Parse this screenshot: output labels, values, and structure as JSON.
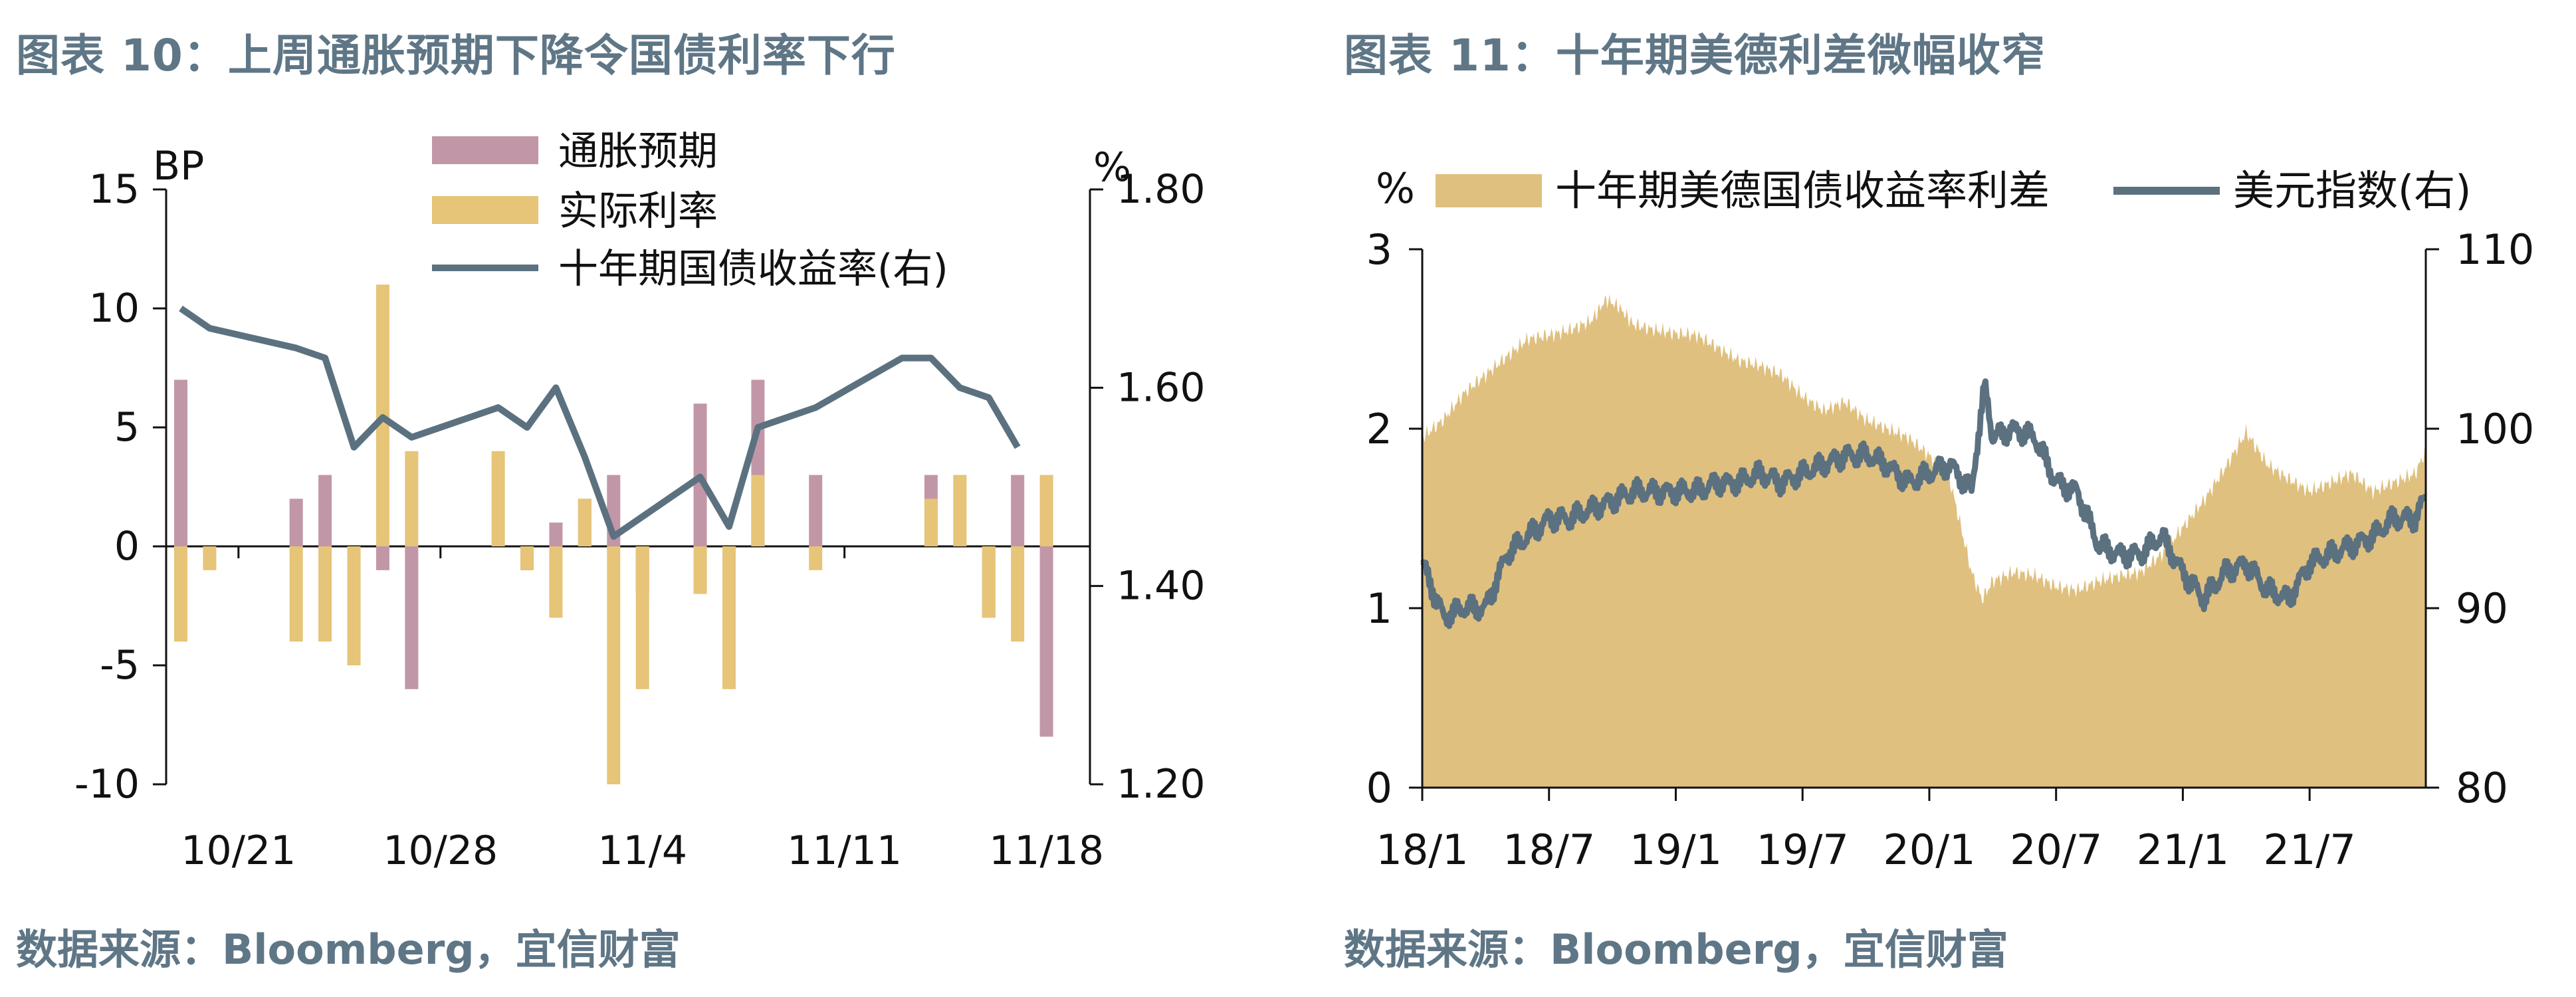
{
  "chart_data": [
    {
      "type": "bar+line",
      "title": "图表 10：上周通胀预期下降令国债利率下行",
      "source": "数据来源：Bloomberg，宜信财富",
      "y_left_unit": "BP",
      "y_right_unit": "%",
      "y_left_lim": [
        -10,
        15
      ],
      "y_left_ticks": [
        "15",
        "10",
        "5",
        "0",
        "-5",
        "-10"
      ],
      "y_right_lim": [
        1.2,
        1.8
      ],
      "y_right_ticks": [
        "1.80",
        "1.60",
        "1.40",
        "1.20"
      ],
      "x_ticks": [
        {
          "label": "10/21",
          "day": 2
        },
        {
          "label": "10/28",
          "day": 9
        },
        {
          "label": "11/4",
          "day": 16
        },
        {
          "label": "11/11",
          "day": 23
        },
        {
          "label": "11/18",
          "day": 30
        }
      ],
      "x_range_days": [
        0,
        31
      ],
      "legend_position": "top-center",
      "grid": false,
      "colors": {
        "inflation": "#c197a8",
        "real": "#e6c478",
        "yield": "#5c7180"
      },
      "series": [
        {
          "name": "通胀预期",
          "kind": "bar",
          "points": [
            {
              "day": 0,
              "value": 7
            },
            {
              "day": 4,
              "value": 2
            },
            {
              "day": 5,
              "value": 3
            },
            {
              "day": 6,
              "value": -4
            },
            {
              "day": 7,
              "value": -1
            },
            {
              "day": 8,
              "value": -6
            },
            {
              "day": 12,
              "value": -1
            },
            {
              "day": 13,
              "value": 1
            },
            {
              "day": 14,
              "value": 2
            },
            {
              "day": 15,
              "value": 3
            },
            {
              "day": 16,
              "value": -2
            },
            {
              "day": 18,
              "value": 6
            },
            {
              "day": 20,
              "value": 7
            },
            {
              "day": 22,
              "value": 3
            },
            {
              "day": 26,
              "value": 3
            },
            {
              "day": 28,
              "value": -3
            },
            {
              "day": 29,
              "value": 3
            },
            {
              "day": 30,
              "value": -8
            }
          ]
        },
        {
          "name": "实际利率",
          "kind": "bar",
          "points": [
            {
              "day": 0,
              "value": -4
            },
            {
              "day": 1,
              "value": -1
            },
            {
              "day": 4,
              "value": -4
            },
            {
              "day": 5,
              "value": -4
            },
            {
              "day": 6,
              "value": -5
            },
            {
              "day": 7,
              "value": 11
            },
            {
              "day": 8,
              "value": 4
            },
            {
              "day": 11,
              "value": 4
            },
            {
              "day": 12,
              "value": -1
            },
            {
              "day": 13,
              "value": -3
            },
            {
              "day": 14,
              "value": 2
            },
            {
              "day": 15,
              "value": -10
            },
            {
              "day": 16,
              "value": -6
            },
            {
              "day": 18,
              "value": -2
            },
            {
              "day": 19,
              "value": -6
            },
            {
              "day": 20,
              "value": 3
            },
            {
              "day": 22,
              "value": -1
            },
            {
              "day": 26,
              "value": 2
            },
            {
              "day": 27,
              "value": 3
            },
            {
              "day": 28,
              "value": -3
            },
            {
              "day": 29,
              "value": -4
            },
            {
              "day": 30,
              "value": 3
            }
          ]
        },
        {
          "name": "十年期国债收益率(右)",
          "kind": "line",
          "points": [
            {
              "day": 0,
              "value": 1.68
            },
            {
              "day": 1,
              "value": 1.66
            },
            {
              "day": 4,
              "value": 1.64
            },
            {
              "day": 5,
              "value": 1.63
            },
            {
              "day": 6,
              "value": 1.54
            },
            {
              "day": 7,
              "value": 1.57
            },
            {
              "day": 8,
              "value": 1.55
            },
            {
              "day": 11,
              "value": 1.58
            },
            {
              "day": 12,
              "value": 1.56
            },
            {
              "day": 13,
              "value": 1.6
            },
            {
              "day": 14,
              "value": 1.53
            },
            {
              "day": 15,
              "value": 1.45
            },
            {
              "day": 18,
              "value": 1.51
            },
            {
              "day": 19,
              "value": 1.46
            },
            {
              "day": 20,
              "value": 1.56
            },
            {
              "day": 22,
              "value": 1.58
            },
            {
              "day": 25,
              "value": 1.63
            },
            {
              "day": 26,
              "value": 1.63
            },
            {
              "day": 27,
              "value": 1.6
            },
            {
              "day": 28,
              "value": 1.59
            },
            {
              "day": 29,
              "value": 1.54
            }
          ]
        }
      ]
    },
    {
      "type": "area+line",
      "title": "图表 11：十年期美德利差微幅收窄",
      "source": "数据来源：Bloomberg，宜信财富",
      "y_left_unit": "%",
      "y_left_lim": [
        0,
        3
      ],
      "y_left_ticks": [
        "3",
        "2",
        "1",
        "0"
      ],
      "y_right_lim": [
        80,
        110
      ],
      "y_right_ticks": [
        "110",
        "100",
        "90",
        "80"
      ],
      "x_range": [
        "2018-01",
        "2021-12"
      ],
      "x_ticks": [
        {
          "label": "18/1",
          "t": 0
        },
        {
          "label": "18/7",
          "t": 6
        },
        {
          "label": "19/1",
          "t": 12
        },
        {
          "label": "19/7",
          "t": 18
        },
        {
          "label": "20/1",
          "t": 24
        },
        {
          "label": "20/7",
          "t": 30
        },
        {
          "label": "21/1",
          "t": 36
        },
        {
          "label": "21/7",
          "t": 42
        }
      ],
      "x_range_months": [
        0,
        47.5
      ],
      "legend_position": "top",
      "grid": false,
      "colors": {
        "spread": "#dfc07f",
        "dxy": "#5c7180"
      },
      "series": [
        {
          "name": "十年期美德国债收益率利差",
          "kind": "area",
          "points": [
            [
              0,
              1.95
            ],
            [
              1,
              2.05
            ],
            [
              2,
              2.2
            ],
            [
              3,
              2.3
            ],
            [
              4,
              2.4
            ],
            [
              5,
              2.5
            ],
            [
              6,
              2.52
            ],
            [
              7,
              2.55
            ],
            [
              8,
              2.6
            ],
            [
              8.7,
              2.72
            ],
            [
              9.3,
              2.68
            ],
            [
              10,
              2.58
            ],
            [
              11,
              2.55
            ],
            [
              12,
              2.53
            ],
            [
              13,
              2.52
            ],
            [
              14,
              2.45
            ],
            [
              15,
              2.38
            ],
            [
              16,
              2.35
            ],
            [
              17,
              2.3
            ],
            [
              18,
              2.18
            ],
            [
              19,
              2.1
            ],
            [
              20,
              2.15
            ],
            [
              21,
              2.05
            ],
            [
              22,
              2.0
            ],
            [
              23,
              1.95
            ],
            [
              24,
              1.85
            ],
            [
              25,
              1.7
            ],
            [
              26,
              1.2
            ],
            [
              26.5,
              1.05
            ],
            [
              27,
              1.15
            ],
            [
              28,
              1.2
            ],
            [
              29,
              1.18
            ],
            [
              30,
              1.12
            ],
            [
              31,
              1.1
            ],
            [
              32,
              1.15
            ],
            [
              33,
              1.18
            ],
            [
              34,
              1.2
            ],
            [
              35,
              1.3
            ],
            [
              36,
              1.45
            ],
            [
              37,
              1.6
            ],
            [
              38,
              1.78
            ],
            [
              39,
              1.98
            ],
            [
              40,
              1.8
            ],
            [
              41,
              1.72
            ],
            [
              42,
              1.65
            ],
            [
              43,
              1.7
            ],
            [
              44,
              1.75
            ],
            [
              45,
              1.65
            ],
            [
              46,
              1.7
            ],
            [
              47,
              1.75
            ],
            [
              47.5,
              1.88
            ]
          ]
        },
        {
          "name": "美元指数(右)",
          "kind": "line",
          "points": [
            [
              0,
              92.5
            ],
            [
              0.5,
              91
            ],
            [
              1,
              89.5
            ],
            [
              2,
              90
            ],
            [
              3,
              90
            ],
            [
              4,
              93
            ],
            [
              5,
              94
            ],
            [
              6,
              95
            ],
            [
              7,
              95
            ],
            [
              8,
              95.5
            ],
            [
              9,
              96
            ],
            [
              10,
              96.5
            ],
            [
              11,
              96.5
            ],
            [
              12,
              96.5
            ],
            [
              13,
              96.5
            ],
            [
              14,
              97
            ],
            [
              15,
              97
            ],
            [
              16,
              97.5
            ],
            [
              17,
              97
            ],
            [
              18,
              97.5
            ],
            [
              19,
              98
            ],
            [
              20,
              98.5
            ],
            [
              21,
              98.5
            ],
            [
              22,
              98
            ],
            [
              23,
              97
            ],
            [
              24,
              97.5
            ],
            [
              25,
              98
            ],
            [
              26,
              96.5
            ],
            [
              26.6,
              102.5
            ],
            [
              27,
              99.5
            ],
            [
              28,
              100
            ],
            [
              29,
              99.5
            ],
            [
              30,
              97
            ],
            [
              31,
              96.5
            ],
            [
              32,
              93.5
            ],
            [
              33,
              93
            ],
            [
              34,
              93
            ],
            [
              35,
              94
            ],
            [
              36,
              92
            ],
            [
              37,
              90.5
            ],
            [
              38,
              92
            ],
            [
              39,
              92.5
            ],
            [
              40,
              91
            ],
            [
              41,
              90.5
            ],
            [
              42,
              92.5
            ],
            [
              43,
              93
            ],
            [
              44,
              93.5
            ],
            [
              45,
              94
            ],
            [
              46,
              95
            ],
            [
              47,
              95
            ],
            [
              47.5,
              96.2
            ]
          ]
        }
      ]
    }
  ]
}
